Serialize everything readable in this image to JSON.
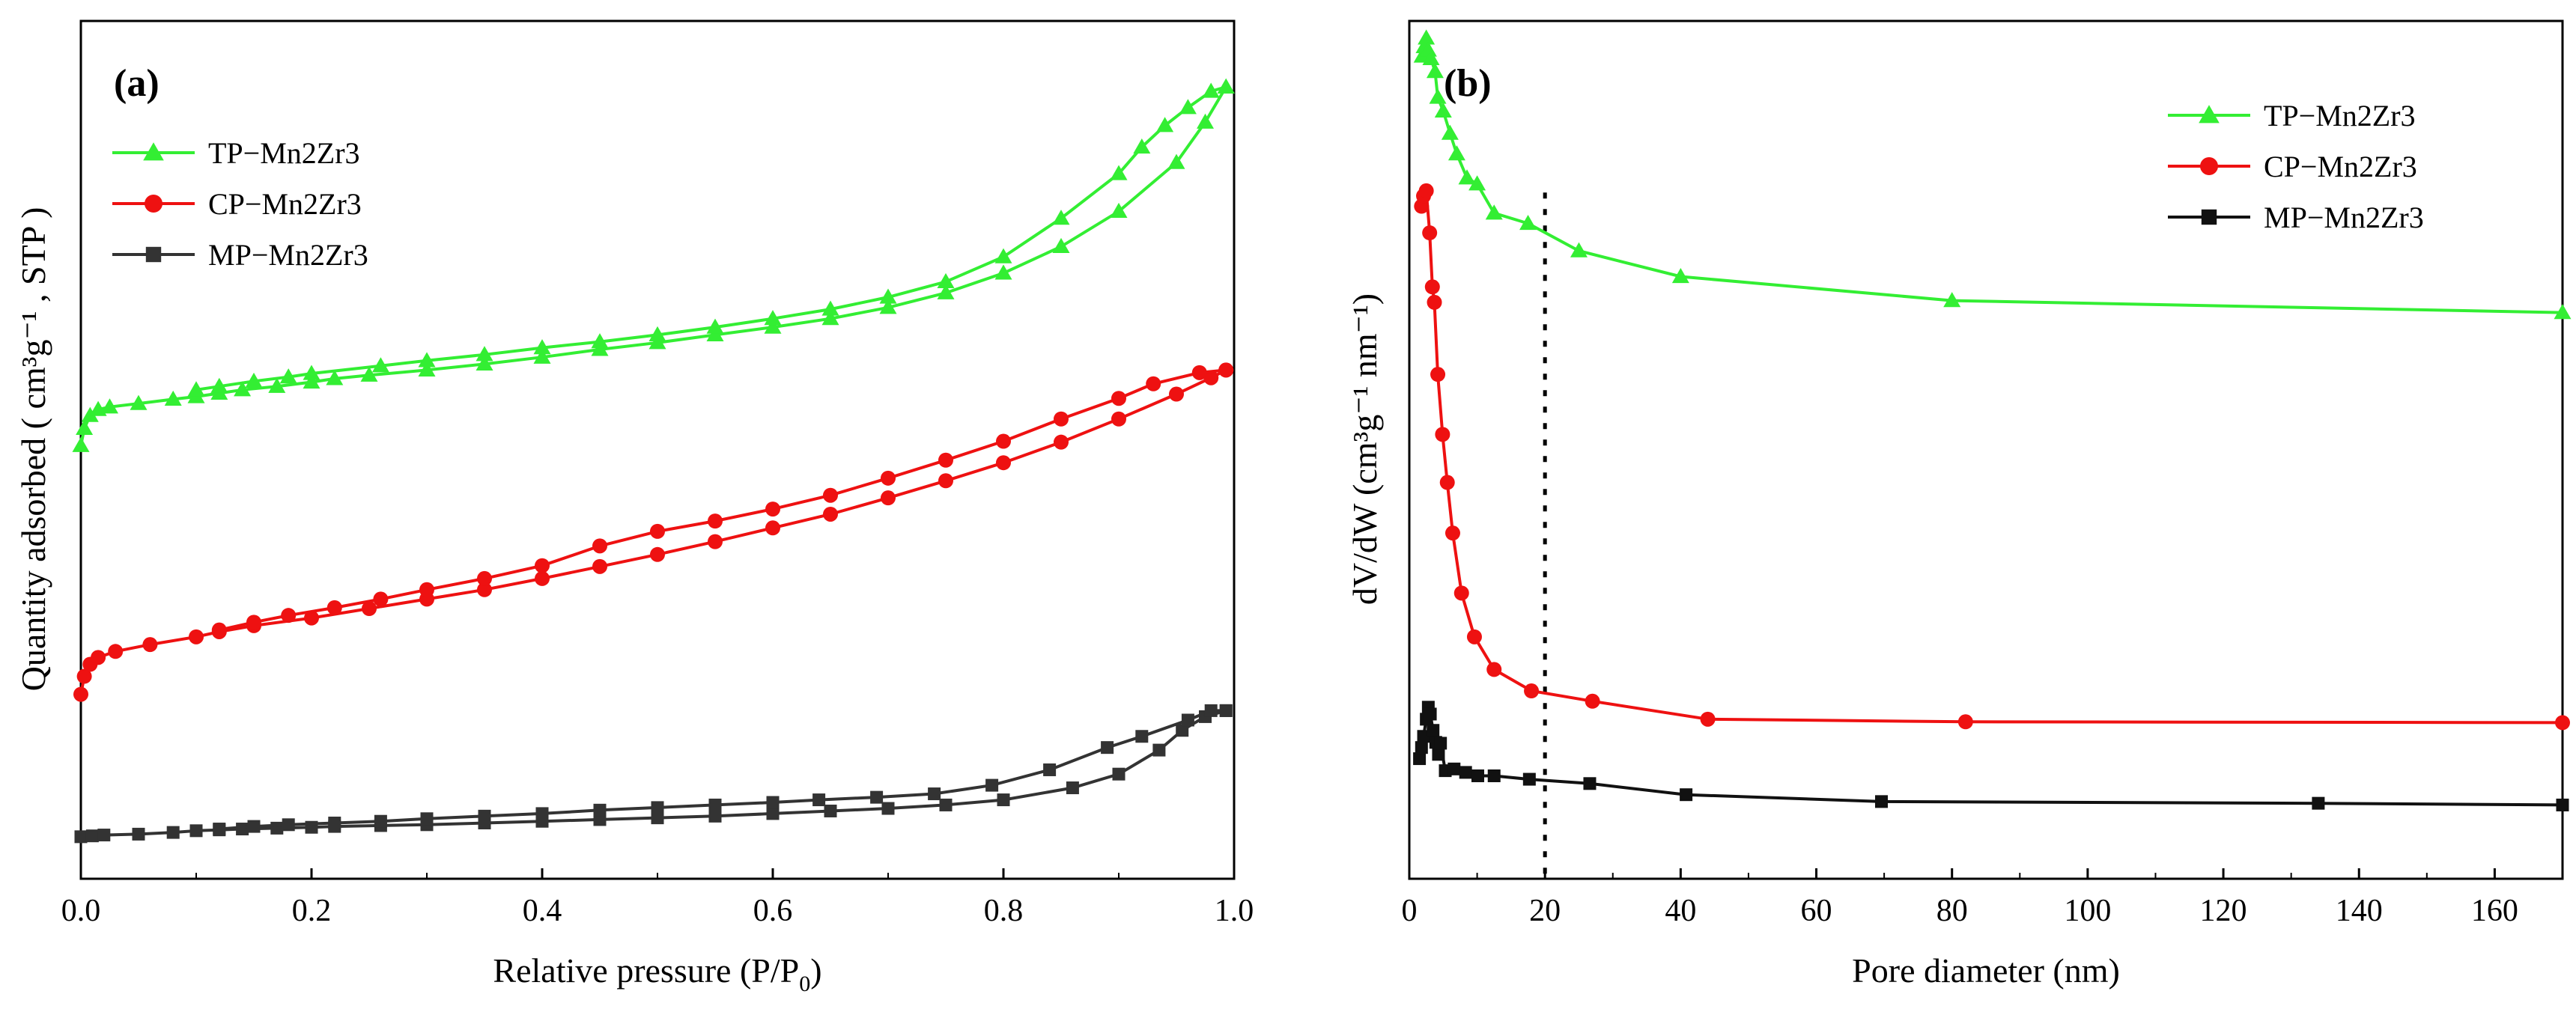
{
  "chart_data": [
    {
      "panel": "(a)",
      "type": "line",
      "xlabel": "Relative pressure (P/P",
      "xlabel_sub": "0",
      "xlabel_end": ")",
      "ylabel": "Quantity adsorbed ( cm³g⁻¹ , STP )",
      "xlim": [
        0,
        1.0
      ],
      "ylim": [
        0,
        100
      ],
      "x_ticks": [
        0.0,
        0.2,
        0.4,
        0.6,
        0.8,
        1.0
      ],
      "x_tick_labels": [
        "0.0",
        "0.2",
        "0.4",
        "0.6",
        "0.8",
        "1.0"
      ],
      "y_ticks_shown": false,
      "legend_position": "top-left",
      "series": [
        {
          "name": "TP−Mn2Zr3",
          "color": "#33ee33",
          "marker": "triangle",
          "adsorption": [
            [
              0.0,
              50.5
            ],
            [
              0.003,
              52.5
            ],
            [
              0.008,
              54.0
            ],
            [
              0.015,
              54.7
            ],
            [
              0.025,
              55.0
            ],
            [
              0.05,
              55.4
            ],
            [
              0.08,
              55.9
            ],
            [
              0.1,
              56.2
            ],
            [
              0.12,
              56.6
            ],
            [
              0.14,
              57.0
            ],
            [
              0.17,
              57.4
            ],
            [
              0.2,
              57.9
            ],
            [
              0.22,
              58.3
            ],
            [
              0.25,
              58.7
            ],
            [
              0.3,
              59.3
            ],
            [
              0.35,
              60.0
            ],
            [
              0.4,
              60.8
            ],
            [
              0.45,
              61.7
            ],
            [
              0.5,
              62.5
            ],
            [
              0.55,
              63.4
            ],
            [
              0.6,
              64.3
            ],
            [
              0.65,
              65.3
            ],
            [
              0.7,
              66.6
            ],
            [
              0.75,
              68.3
            ],
            [
              0.8,
              70.6
            ],
            [
              0.85,
              73.7
            ],
            [
              0.9,
              77.8
            ],
            [
              0.95,
              83.5
            ],
            [
              0.975,
              88.2
            ],
            [
              0.993,
              92.3
            ]
          ],
          "desorption": [
            [
              0.993,
              92.3
            ],
            [
              0.98,
              91.8
            ],
            [
              0.96,
              89.9
            ],
            [
              0.94,
              87.8
            ],
            [
              0.92,
              85.3
            ],
            [
              0.9,
              82.2
            ],
            [
              0.85,
              77.0
            ],
            [
              0.8,
              72.5
            ],
            [
              0.75,
              69.6
            ],
            [
              0.7,
              67.8
            ],
            [
              0.65,
              66.4
            ],
            [
              0.6,
              65.3
            ],
            [
              0.55,
              64.3
            ],
            [
              0.5,
              63.4
            ],
            [
              0.45,
              62.6
            ],
            [
              0.4,
              61.9
            ],
            [
              0.35,
              61.1
            ],
            [
              0.3,
              60.4
            ],
            [
              0.26,
              59.8
            ],
            [
              0.2,
              58.9
            ],
            [
              0.18,
              58.5
            ],
            [
              0.15,
              58.0
            ],
            [
              0.12,
              57.4
            ],
            [
              0.1,
              57.0
            ]
          ]
        },
        {
          "name": "CP−Mn2Zr3",
          "color": "#ee1111",
          "marker": "circle",
          "adsorption": [
            [
              0.0,
              21.5
            ],
            [
              0.003,
              23.6
            ],
            [
              0.008,
              25.0
            ],
            [
              0.015,
              25.8
            ],
            [
              0.03,
              26.5
            ],
            [
              0.06,
              27.3
            ],
            [
              0.1,
              28.2
            ],
            [
              0.12,
              28.8
            ],
            [
              0.15,
              29.5
            ],
            [
              0.2,
              30.4
            ],
            [
              0.25,
              31.5
            ],
            [
              0.3,
              32.6
            ],
            [
              0.35,
              33.7
            ],
            [
              0.4,
              35.0
            ],
            [
              0.45,
              36.4
            ],
            [
              0.5,
              37.8
            ],
            [
              0.55,
              39.3
            ],
            [
              0.6,
              40.9
            ],
            [
              0.65,
              42.5
            ],
            [
              0.7,
              44.4
            ],
            [
              0.75,
              46.4
            ],
            [
              0.8,
              48.5
            ],
            [
              0.85,
              50.9
            ],
            [
              0.9,
              53.6
            ],
            [
              0.95,
              56.5
            ],
            [
              0.98,
              58.4
            ],
            [
              0.993,
              59.3
            ]
          ],
          "desorption": [
            [
              0.993,
              59.3
            ],
            [
              0.97,
              59.0
            ],
            [
              0.93,
              57.7
            ],
            [
              0.9,
              56.0
            ],
            [
              0.85,
              53.6
            ],
            [
              0.8,
              51.0
            ],
            [
              0.75,
              48.8
            ],
            [
              0.7,
              46.7
            ],
            [
              0.65,
              44.7
            ],
            [
              0.6,
              43.1
            ],
            [
              0.55,
              41.7
            ],
            [
              0.5,
              40.5
            ],
            [
              0.45,
              38.8
            ],
            [
              0.4,
              36.5
            ],
            [
              0.35,
              35.0
            ],
            [
              0.3,
              33.7
            ],
            [
              0.26,
              32.6
            ],
            [
              0.22,
              31.6
            ],
            [
              0.18,
              30.7
            ],
            [
              0.15,
              29.9
            ],
            [
              0.12,
              29.0
            ]
          ]
        },
        {
          "name": "MP−Mn2Zr3",
          "color": "#333333",
          "marker": "square",
          "adsorption": [
            [
              0.0,
              4.9
            ],
            [
              0.01,
              5.0
            ],
            [
              0.02,
              5.1
            ],
            [
              0.05,
              5.2
            ],
            [
              0.08,
              5.4
            ],
            [
              0.1,
              5.6
            ],
            [
              0.12,
              5.7
            ],
            [
              0.14,
              5.8
            ],
            [
              0.17,
              5.9
            ],
            [
              0.2,
              6.0
            ],
            [
              0.22,
              6.1
            ],
            [
              0.26,
              6.2
            ],
            [
              0.3,
              6.3
            ],
            [
              0.35,
              6.5
            ],
            [
              0.4,
              6.7
            ],
            [
              0.45,
              6.9
            ],
            [
              0.5,
              7.1
            ],
            [
              0.55,
              7.3
            ],
            [
              0.6,
              7.6
            ],
            [
              0.65,
              7.9
            ],
            [
              0.7,
              8.2
            ],
            [
              0.75,
              8.6
            ],
            [
              0.8,
              9.2
            ],
            [
              0.86,
              10.6
            ],
            [
              0.9,
              12.2
            ],
            [
              0.935,
              15.0
            ],
            [
              0.955,
              17.3
            ],
            [
              0.975,
              18.9
            ],
            [
              0.993,
              19.6
            ]
          ],
          "desorption": [
            [
              0.993,
              19.6
            ],
            [
              0.98,
              19.6
            ],
            [
              0.96,
              18.5
            ],
            [
              0.92,
              16.6
            ],
            [
              0.89,
              15.3
            ],
            [
              0.84,
              12.7
            ],
            [
              0.79,
              10.9
            ],
            [
              0.74,
              9.9
            ],
            [
              0.69,
              9.5
            ],
            [
              0.64,
              9.2
            ],
            [
              0.6,
              8.9
            ],
            [
              0.55,
              8.6
            ],
            [
              0.5,
              8.3
            ],
            [
              0.45,
              8.0
            ],
            [
              0.4,
              7.6
            ],
            [
              0.35,
              7.3
            ],
            [
              0.3,
              7.0
            ],
            [
              0.26,
              6.7
            ],
            [
              0.22,
              6.5
            ],
            [
              0.18,
              6.3
            ],
            [
              0.15,
              6.1
            ],
            [
              0.12,
              5.8
            ]
          ]
        }
      ]
    },
    {
      "panel": "(b)",
      "type": "line",
      "xlabel": "Pore diameter (nm)",
      "ylabel": "dV/dW (cm³g⁻¹ nm⁻¹)",
      "xlim": [
        0,
        170
      ],
      "ylim": [
        0,
        100
      ],
      "x_ticks": [
        0,
        20,
        40,
        60,
        80,
        100,
        120,
        140,
        160
      ],
      "x_tick_labels": [
        "0",
        "20",
        "40",
        "60",
        "80",
        "100",
        "120",
        "140",
        "160"
      ],
      "y_ticks_shown": false,
      "reference_line_x": 20,
      "legend_position": "top-right",
      "series": [
        {
          "name": "TP−Mn2Zr3",
          "color": "#33ee33",
          "marker": "triangle",
          "points": [
            [
              1.9,
              95.9
            ],
            [
              2.2,
              97.0
            ],
            [
              2.5,
              98.0
            ],
            [
              2.8,
              96.6
            ],
            [
              3.2,
              95.6
            ],
            [
              3.8,
              94.1
            ],
            [
              4.2,
              91.1
            ],
            [
              5.0,
              89.5
            ],
            [
              6.0,
              86.9
            ],
            [
              7.0,
              84.5
            ],
            [
              8.5,
              81.7
            ],
            [
              10.0,
              81.0
            ],
            [
              12.5,
              77.6
            ],
            [
              17.5,
              76.4
            ],
            [
              25.0,
              73.2
            ],
            [
              40.0,
              70.2
            ],
            [
              80.0,
              67.4
            ],
            [
              170.0,
              66.0
            ]
          ]
        },
        {
          "name": "CP−Mn2Zr3",
          "color": "#ee1111",
          "marker": "circle",
          "points": [
            [
              1.8,
              78.4
            ],
            [
              2.1,
              79.6
            ],
            [
              2.5,
              80.2
            ],
            [
              3.0,
              75.3
            ],
            [
              3.4,
              69.0
            ],
            [
              3.7,
              67.2
            ],
            [
              4.2,
              58.8
            ],
            [
              4.9,
              51.8
            ],
            [
              5.6,
              46.2
            ],
            [
              6.4,
              40.3
            ],
            [
              7.7,
              33.3
            ],
            [
              9.6,
              28.2
            ],
            [
              12.5,
              24.4
            ],
            [
              18.0,
              21.9
            ],
            [
              27.0,
              20.7
            ],
            [
              44.0,
              18.6
            ],
            [
              82.0,
              18.3
            ],
            [
              170.0,
              18.2
            ]
          ]
        },
        {
          "name": "MP−Mn2Zr3",
          "color": "#111111",
          "marker": "square",
          "points": [
            [
              1.5,
              14.0
            ],
            [
              1.8,
              15.3
            ],
            [
              2.1,
              16.6
            ],
            [
              2.5,
              18.6
            ],
            [
              2.8,
              20.0
            ],
            [
              3.1,
              19.2
            ],
            [
              3.5,
              17.3
            ],
            [
              3.9,
              15.9
            ],
            [
              4.3,
              14.5
            ],
            [
              4.6,
              15.8
            ],
            [
              5.3,
              12.6
            ],
            [
              6.6,
              12.8
            ],
            [
              8.3,
              12.4
            ],
            [
              10.1,
              12.0
            ],
            [
              12.5,
              12.0
            ],
            [
              17.7,
              11.6
            ],
            [
              26.6,
              11.1
            ],
            [
              40.8,
              9.8
            ],
            [
              69.6,
              9.0
            ],
            [
              134.0,
              8.8
            ],
            [
              170.0,
              8.6
            ]
          ]
        }
      ]
    }
  ]
}
